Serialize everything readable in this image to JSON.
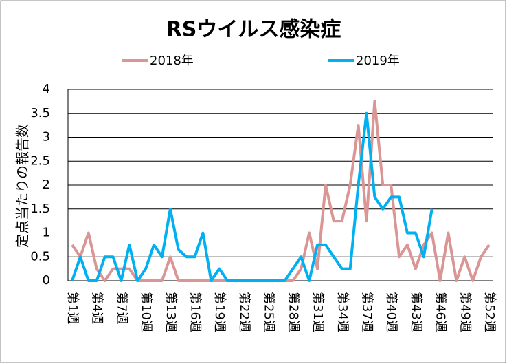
{
  "chart_data": {
    "type": "line",
    "title": "RSウイルス感染症",
    "y_label": "定点当たりの報告数",
    "categories": [
      "第1週",
      null,
      null,
      "第4週",
      null,
      null,
      "第7週",
      null,
      null,
      "第10週",
      null,
      null,
      "第13週",
      null,
      null,
      "第16週",
      null,
      null,
      "第19週",
      null,
      null,
      "第22週",
      null,
      null,
      "第25週",
      null,
      null,
      "第28週",
      null,
      null,
      "第31週",
      null,
      null,
      "第34週",
      null,
      null,
      "第37週",
      null,
      null,
      "第40週",
      null,
      null,
      "第43週",
      null,
      null,
      "第46週",
      null,
      null,
      "第49週",
      null,
      null,
      "第52週"
    ],
    "series": [
      {
        "name": "2018年",
        "color": "#d99694",
        "values": [
          0.75,
          0.5,
          1,
          0.25,
          0,
          0.25,
          0.25,
          0.25,
          0,
          0,
          0,
          0,
          0.5,
          0,
          0,
          0,
          0,
          0,
          0,
          0,
          0,
          0,
          0,
          0,
          0,
          0,
          0,
          0,
          0.25,
          1,
          0.25,
          2,
          1.25,
          1.25,
          2,
          3.25,
          1.25,
          3.75,
          2,
          2,
          0.5,
          0.75,
          0.25,
          0.75,
          1,
          0,
          1,
          0,
          0.5,
          0,
          0.5,
          0.75
        ]
      },
      {
        "name": "2019年",
        "color": "#00b0f0",
        "values": [
          0,
          0.5,
          0,
          0,
          0.5,
          0.5,
          0,
          0.75,
          0,
          0.25,
          0.75,
          0.5,
          1.5,
          0.65,
          0.5,
          0.5,
          1,
          0,
          0.25,
          0,
          0,
          0,
          0,
          0,
          0,
          0,
          0,
          0.25,
          0.5,
          0,
          0.75,
          0.75,
          0.5,
          0.25,
          0.25,
          2,
          3.5,
          1.75,
          1.5,
          1.75,
          1.75,
          1,
          1,
          0.5,
          1.5,
          null,
          null,
          null,
          null,
          null,
          null,
          null
        ]
      }
    ],
    "ylim": [
      0,
      4
    ],
    "yticks": [
      0,
      0.5,
      1,
      1.5,
      2,
      2.5,
      3,
      3.5,
      4
    ],
    "grid": true
  }
}
